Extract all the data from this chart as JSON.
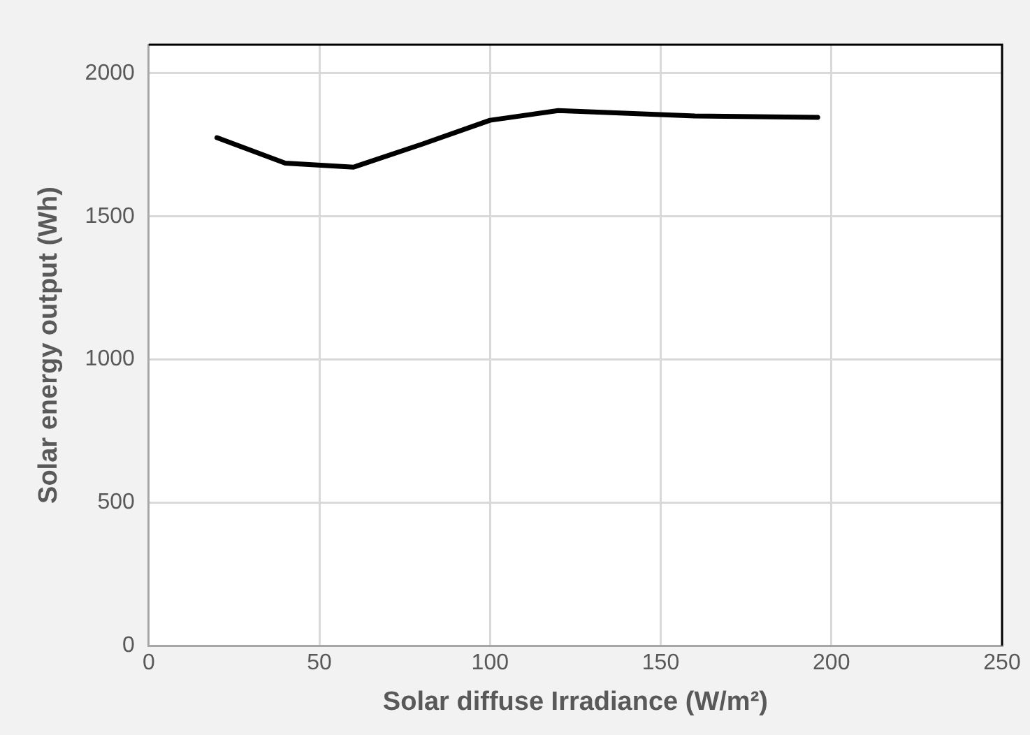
{
  "chart_data": {
    "type": "line",
    "xlabel": "Solar diffuse Irradiance (W/m²)",
    "ylabel": "Solar energy output (Wh)",
    "x": [
      20,
      40,
      60,
      80,
      100,
      120,
      160,
      196
    ],
    "series": [
      {
        "color": "#000000",
        "values": [
          1775,
          1686,
          1672,
          1752,
          1836,
          1870,
          1851,
          1846
        ]
      }
    ],
    "xlim": [
      0,
      250
    ],
    "xticks": [
      0,
      50,
      100,
      150,
      200,
      250
    ],
    "ylim": [
      0,
      2100
    ],
    "yticks": [
      0,
      500,
      1000,
      1500,
      2000
    ],
    "grid": true,
    "legend": false,
    "marker": "none",
    "line_style": "solid"
  }
}
